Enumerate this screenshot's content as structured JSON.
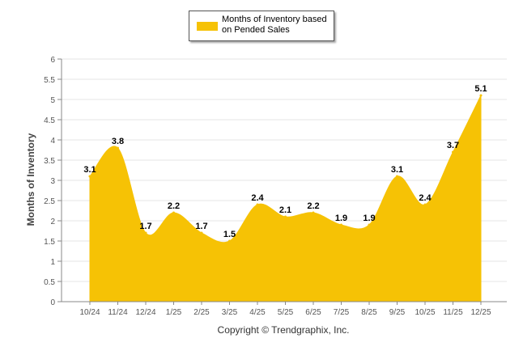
{
  "chart_data": {
    "type": "area",
    "title": "",
    "legend": {
      "label": "Months of Inventory based on Pended Sales",
      "position": "top-center"
    },
    "ylabel": "Months of Inventory",
    "xlabel": "",
    "ylim": [
      0,
      6
    ],
    "yticks": [
      "0",
      "0.5",
      "1",
      "1.5",
      "2",
      "2.5",
      "3",
      "3.5",
      "4",
      "4.5",
      "5",
      "5.5",
      "6"
    ],
    "categories": [
      "10/24",
      "11/24",
      "12/24",
      "1/25",
      "2/25",
      "3/25",
      "4/25",
      "5/25",
      "6/25",
      "7/25",
      "8/25",
      "9/25",
      "10/25",
      "11/25",
      "12/25"
    ],
    "series": [
      {
        "name": "Months of Inventory based on Pended Sales",
        "values": [
          3.1,
          3.8,
          1.7,
          2.2,
          1.7,
          1.5,
          2.4,
          2.1,
          2.2,
          1.9,
          1.9,
          3.1,
          2.4,
          3.7,
          5.1
        ],
        "labels": [
          "3.1",
          "3.8",
          "1.7",
          "2.2",
          "1.7",
          "1.5",
          "2.4",
          "2.1",
          "2.2",
          "1.9",
          "1.9",
          "3.1",
          "2.4",
          "3.7",
          "5.1"
        ]
      }
    ],
    "grid": true,
    "colors": {
      "fill": "#F6C205",
      "grid": "#E6E6E6",
      "axis": "#888888",
      "text": "#555555"
    }
  },
  "footer": {
    "copyright": "Copyright © Trendgraphix, Inc."
  }
}
